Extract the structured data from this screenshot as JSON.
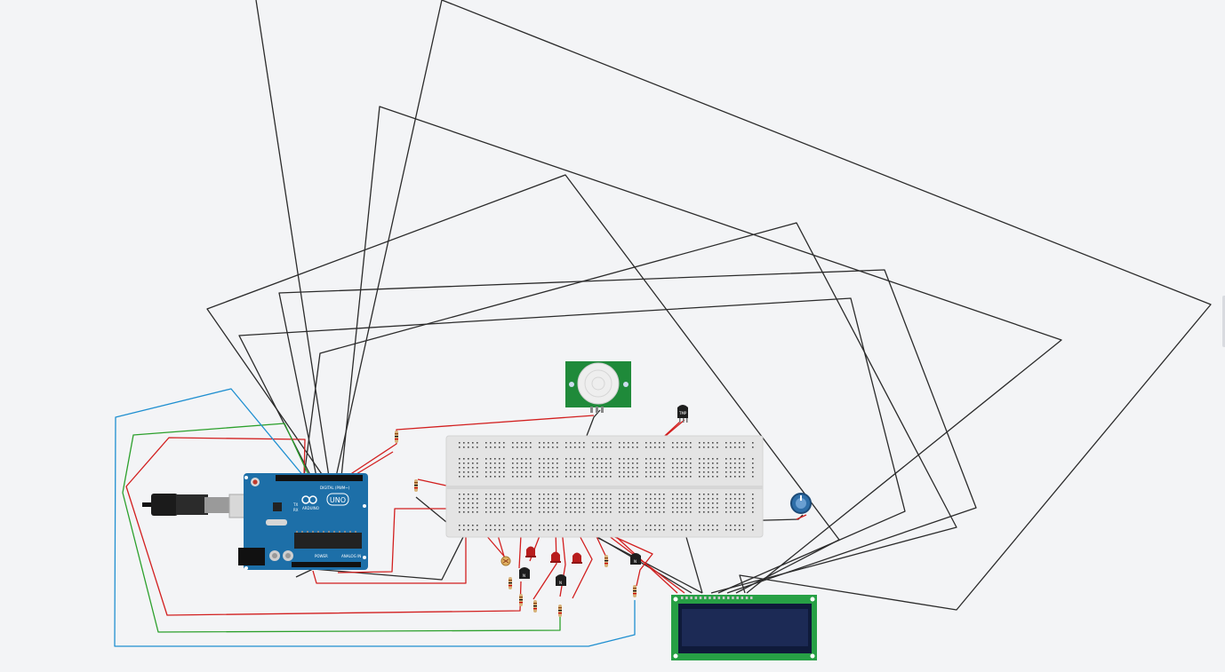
{
  "workspace": {
    "background": "#f3f4f6",
    "wire_colors": {
      "black": "#2b2b2b",
      "red": "#d21f1f",
      "green": "#2ca02c",
      "blue": "#1f8fd0"
    }
  },
  "arduino": {
    "board_color": "#1d6fa8",
    "logo_text": "UNO",
    "digital_label": "DIGITAL (PWM~)",
    "power_label": "POWER",
    "analog_label": "ANALOG IN",
    "brand_label": "ARDUINO",
    "tx_label": "TX",
    "rx_label": "RX"
  },
  "pir_sensor": {
    "board_color": "#1f8a3a",
    "dome_color": "#eeeeee"
  },
  "temp_sensor": {
    "label": "TMP"
  },
  "transistor": {
    "label": "N"
  },
  "lcd": {
    "pcb_color": "#27a045",
    "screen_color": "#1c2a55"
  },
  "potentiometer": {
    "knob_color": "#2e6ea8"
  }
}
